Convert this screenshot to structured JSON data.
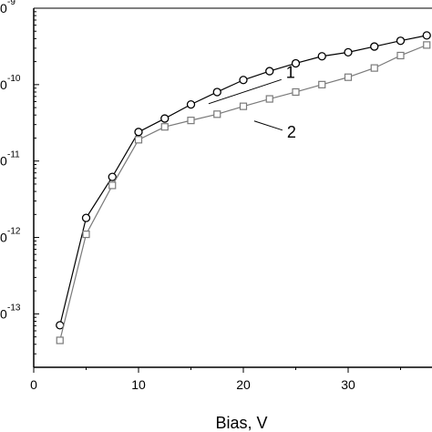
{
  "chart_data": {
    "type": "line",
    "title": "",
    "xlabel": "Bias, V",
    "ylabel": "",
    "y_scale": "log",
    "grid": false,
    "xlim": [
      0,
      38
    ],
    "ylim": [
      2e-14,
      1e-09
    ],
    "x_ticks": [
      0,
      10,
      20,
      30
    ],
    "x_tick_labels": [
      "0",
      "10",
      "20",
      "30"
    ],
    "y_ticks": [
      1e-09,
      1e-10,
      1e-11,
      1e-12,
      1e-13
    ],
    "y_tick_labels": [
      "0",
      "0",
      "0",
      "0",
      "0"
    ],
    "y_tick_exponents": [
      "-9",
      "-10",
      "-11",
      "-12",
      "-13"
    ],
    "series": [
      {
        "annotation": "1",
        "marker": "circle",
        "color": "#000000",
        "x": [
          2.5,
          5,
          7.5,
          10,
          12.5,
          15,
          17.5,
          20,
          22.5,
          25,
          27.5,
          30,
          32.5,
          35,
          37.5
        ],
        "y": [
          7.1e-14,
          1.8e-12,
          6.2e-12,
          2.4e-11,
          3.6e-11,
          5.5e-11,
          8e-11,
          1.15e-10,
          1.5e-10,
          1.9e-10,
          2.35e-10,
          2.65e-10,
          3.15e-10,
          3.75e-10,
          4.4e-10
        ]
      },
      {
        "annotation": "2",
        "marker": "square",
        "color": "#7a7a7a",
        "x": [
          2.5,
          5,
          7.5,
          10,
          12.5,
          15,
          17.5,
          20,
          22.5,
          25,
          27.5,
          30,
          32.5,
          35,
          37.5
        ],
        "y": [
          4.5e-14,
          1.1e-12,
          4.8e-12,
          1.9e-11,
          2.8e-11,
          3.4e-11,
          4.1e-11,
          5.2e-11,
          6.5e-11,
          8e-11,
          1e-10,
          1.25e-10,
          1.65e-10,
          2.4e-10,
          3.3e-10
        ]
      }
    ],
    "annotations": [
      {
        "text": "1",
        "x": 24.5,
        "y": 1.45e-10
      },
      {
        "text": "2",
        "x": 24.6,
        "y": 2.4e-11
      }
    ]
  }
}
